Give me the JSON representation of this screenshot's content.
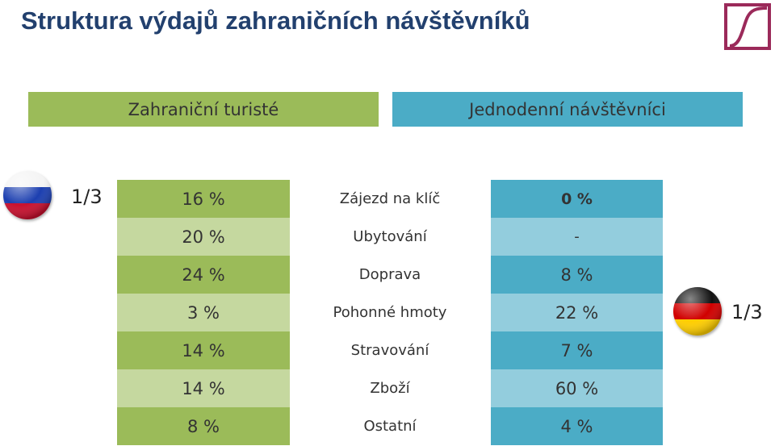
{
  "title": "Struktura výdajů zahraničních návštěvníků",
  "header": {
    "left": "Zahraniční turisté",
    "right": "Jednodenní návštěvníci"
  },
  "flags": {
    "left": {
      "icon": "russia-flag-icon",
      "fraction": "1/3"
    },
    "right": {
      "icon": "germany-flag-icon",
      "fraction": "1/3"
    }
  },
  "rows": [
    {
      "left": "16 %",
      "category": "Zájezd na klíč",
      "right": "0 %"
    },
    {
      "left": "20 %",
      "category": "Ubytování",
      "right": "-"
    },
    {
      "left": "24 %",
      "category": "Doprava",
      "right": "8 %"
    },
    {
      "left": "3 %",
      "category": "Pohonné hmoty",
      "right": "22 %"
    },
    {
      "left": "14 %",
      "category": "Stravování",
      "right": "7 %"
    },
    {
      "left": "14 %",
      "category": "Zboží",
      "right": "60 %"
    },
    {
      "left": "8 %",
      "category": "Ostatní",
      "right": "4 %"
    }
  ],
  "colors": {
    "green_dark": "#9bbb59",
    "green_light": "#c5d89f",
    "blue_dark": "#4bacc6",
    "blue_light": "#93cddd",
    "logo": "#9b2a5a"
  }
}
